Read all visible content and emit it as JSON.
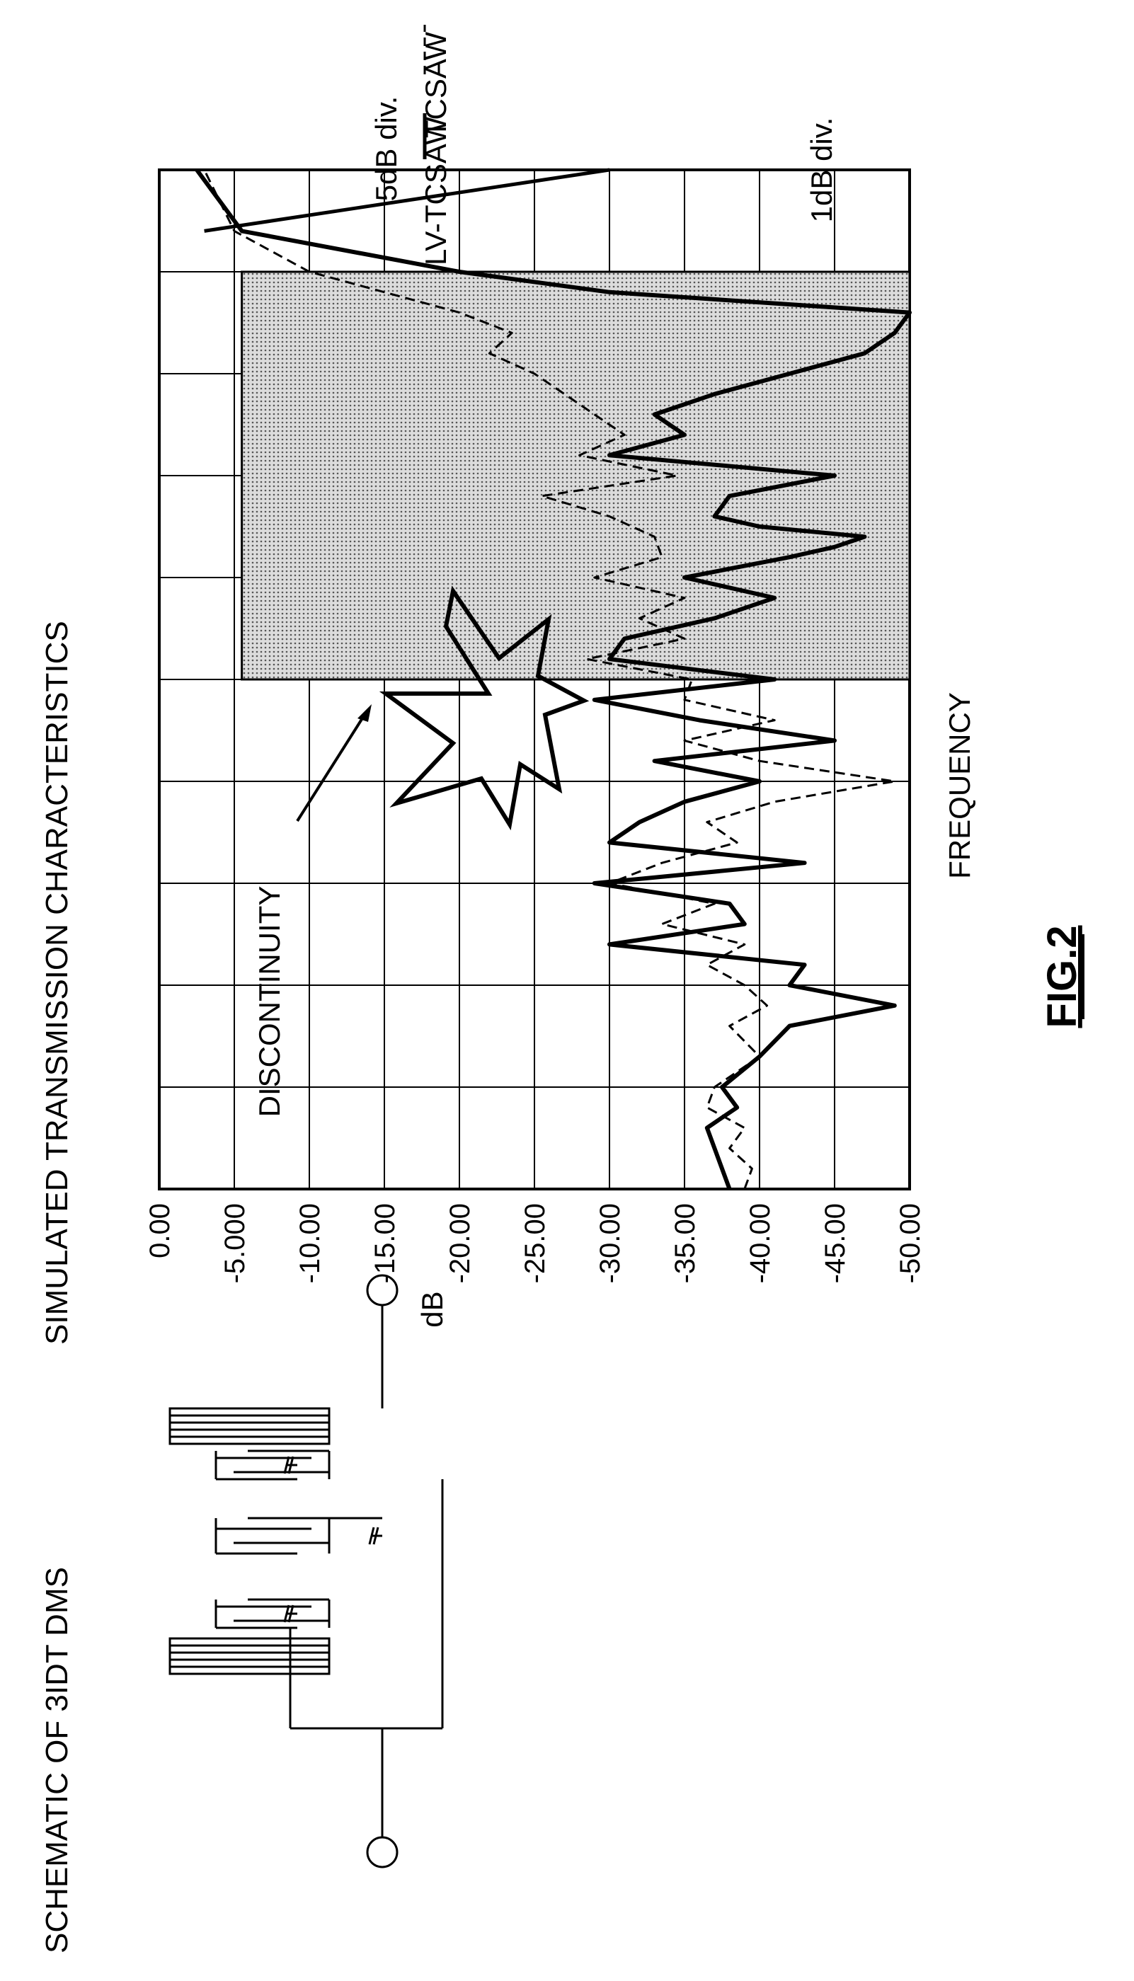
{
  "schematic": {
    "title": "SCHEMATIC OF 3IDT DMS"
  },
  "chart_title": "SIMULATED TRANSMISSION CHARACTERISTICS",
  "figure_label": "FIG.2",
  "annotations": {
    "scale_5db": "5dB div.",
    "scale_1db": "1dB div.",
    "discontinuity": "DISCONTINUITY"
  },
  "legend": [
    {
      "name": "TCSAW",
      "style": "dashed"
    },
    {
      "name": "LV-TCSAW",
      "style": "solid"
    }
  ],
  "chart_data": {
    "type": "line",
    "xlabel": "FREQUENCY",
    "ylabel": "dB",
    "ylim": [
      -50,
      0
    ],
    "yticks": [
      "0.00",
      "-5.000",
      "-10.00",
      "-15.00",
      "-20.00",
      "-25.00",
      "-30.00",
      "-35.00",
      "-40.00",
      "-45.00",
      "-50.00"
    ],
    "grid": true,
    "legend_position": "top-right",
    "series": [
      {
        "name": "LV-TCSAW",
        "x": [
          0,
          0.02,
          0.04,
          0.06,
          0.08,
          0.1,
          0.13,
          0.16,
          0.18,
          0.2,
          0.22,
          0.24,
          0.26,
          0.28,
          0.3,
          0.32,
          0.34,
          0.36,
          0.38,
          0.4,
          0.42,
          0.44,
          0.46,
          0.48,
          0.5,
          0.52,
          0.54,
          0.56,
          0.58,
          0.6,
          0.62,
          0.63,
          0.64,
          0.65,
          0.66,
          0.68,
          0.7,
          0.72,
          0.74,
          0.76,
          0.78,
          0.8,
          0.82,
          0.84,
          0.86,
          0.88,
          0.9,
          0.94,
          1.0
        ],
        "y": [
          -38,
          -37.5,
          -37,
          -36.5,
          -38.5,
          -37.5,
          -40,
          -42,
          -49,
          -42,
          -43,
          -30,
          -39,
          -38,
          -29,
          -43,
          -30,
          -32,
          -35,
          -40,
          -33,
          -45,
          -36,
          -29,
          -41,
          -30,
          -31,
          -37,
          -41,
          -35,
          -42,
          -45,
          -47,
          -40,
          -37,
          -38,
          -45,
          -30,
          -35,
          -33,
          -37,
          -42,
          -47,
          -49,
          -50,
          -30,
          -20,
          -5.5,
          -2.5
        ]
      },
      {
        "name": "TCSAW",
        "x": [
          0,
          0.02,
          0.04,
          0.06,
          0.08,
          0.1,
          0.13,
          0.16,
          0.18,
          0.2,
          0.22,
          0.24,
          0.26,
          0.28,
          0.3,
          0.32,
          0.34,
          0.36,
          0.38,
          0.4,
          0.42,
          0.44,
          0.46,
          0.48,
          0.5,
          0.52,
          0.54,
          0.56,
          0.58,
          0.6,
          0.62,
          0.64,
          0.66,
          0.68,
          0.7,
          0.72,
          0.74,
          0.76,
          0.78,
          0.8,
          0.82,
          0.84,
          0.86,
          0.88,
          0.9,
          0.94,
          1.0
        ],
        "y": [
          -39,
          -39.5,
          -38,
          -39,
          -36.5,
          -37,
          -40,
          -38,
          -40.5,
          -39,
          -36.5,
          -39,
          -33.5,
          -37,
          -30,
          -33.5,
          -38.5,
          -36.5,
          -41,
          -49,
          -40,
          -35,
          -41,
          -35,
          -35.5,
          -28.5,
          -35,
          -32,
          -35,
          -29,
          -33.5,
          -33,
          -30,
          -25.5,
          -34.5,
          -28,
          -31,
          -29,
          -27,
          -25,
          -22,
          -23.5,
          -20,
          -15,
          -10,
          -5,
          -3
        ]
      }
    ]
  }
}
